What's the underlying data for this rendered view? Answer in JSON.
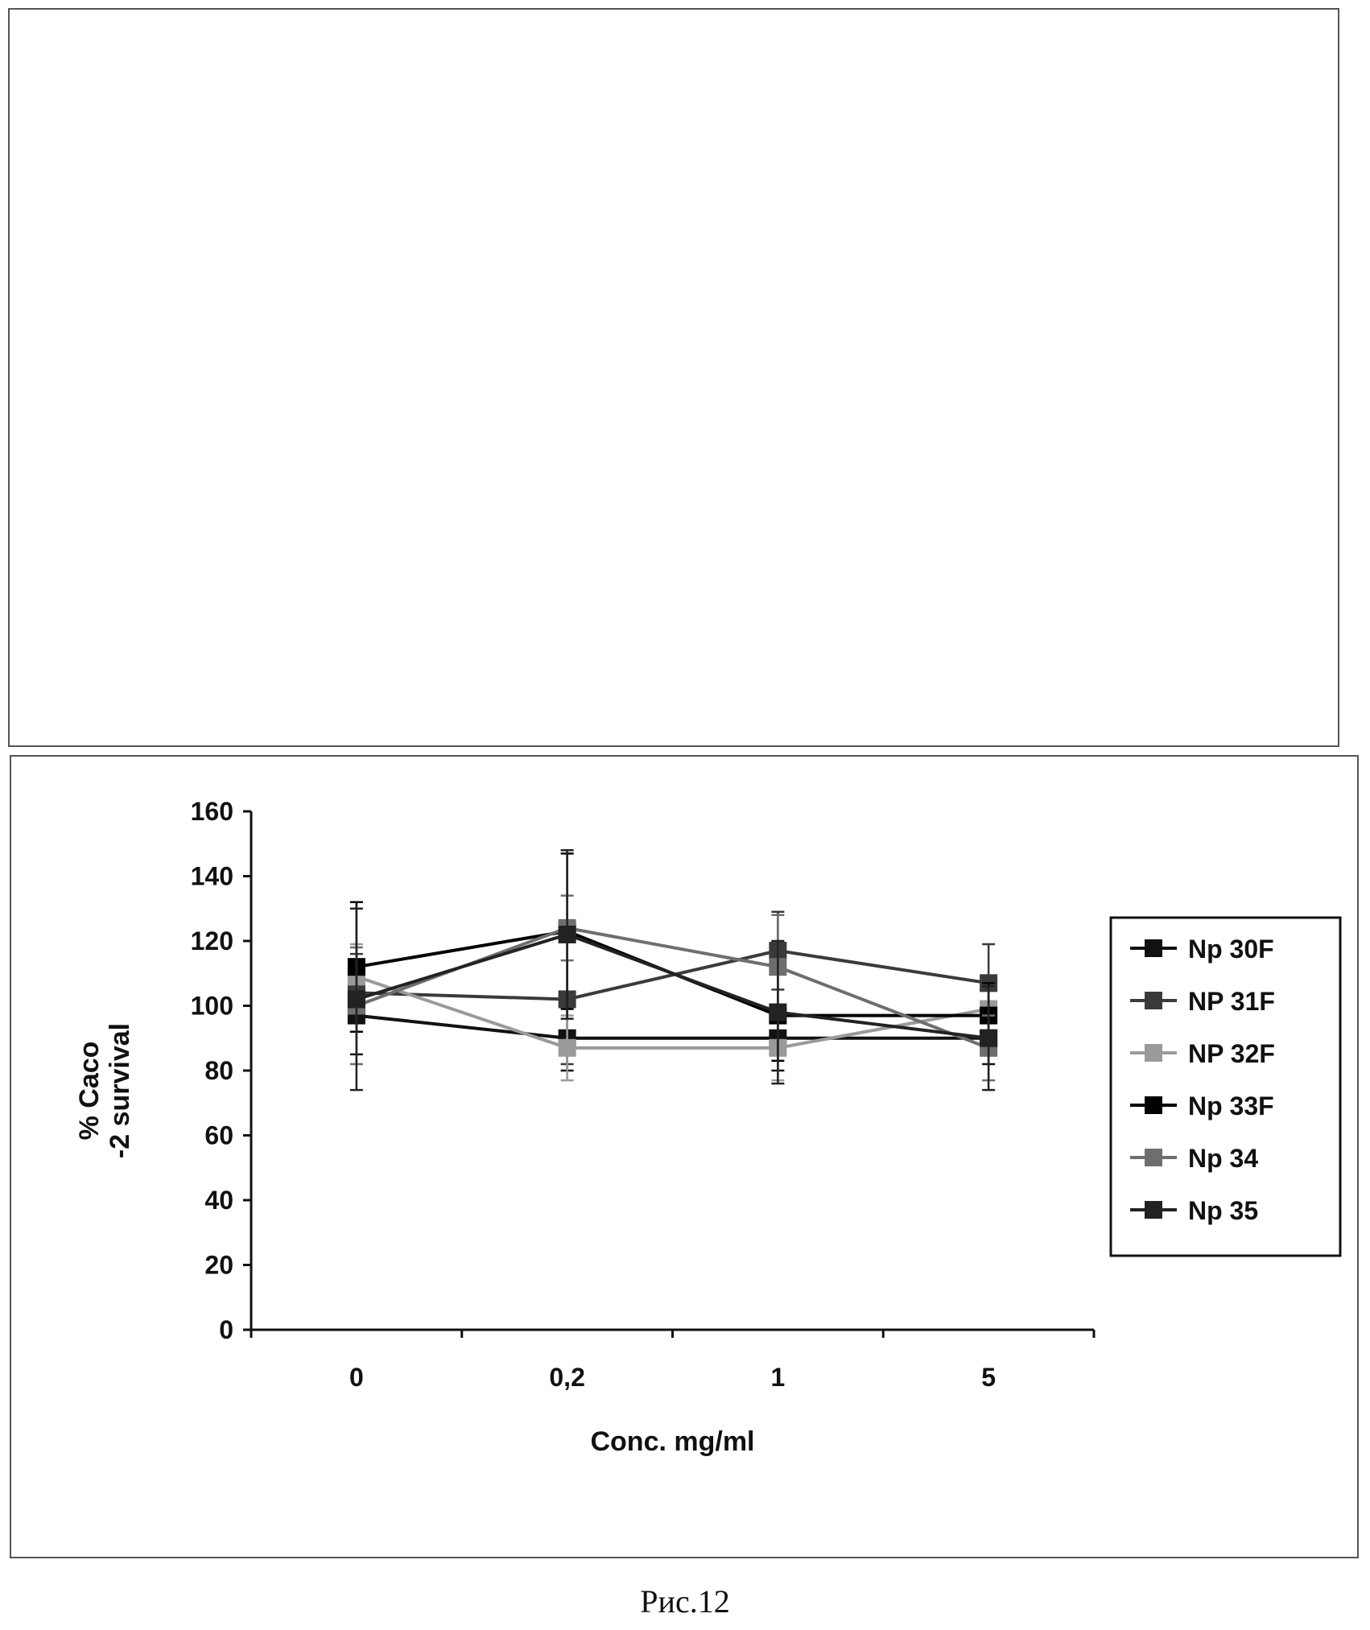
{
  "caption": "Рис.12",
  "chart_data": {
    "type": "line",
    "title": "",
    "xlabel": "Conc. mg/ml",
    "ylabel_lines": [
      "% Caco",
      "-2 survival"
    ],
    "categories": [
      "0",
      "0,2",
      "1",
      "5"
    ],
    "ylim": [
      0,
      160
    ],
    "yticks": [
      0,
      20,
      40,
      60,
      80,
      100,
      120,
      140,
      160
    ],
    "grid": false,
    "legend_position": "right",
    "error_bars": true,
    "series": [
      {
        "name": "Np 30F",
        "values": [
          97,
          90,
          90,
          90
        ],
        "error": [
          12,
          10,
          10,
          8
        ],
        "color": "#111111",
        "marker": "square"
      },
      {
        "name": "NP 31F",
        "values": [
          104,
          102,
          117,
          107
        ],
        "error": [
          12,
          20,
          12,
          12
        ],
        "color": "#3a3a3a",
        "marker": "square"
      },
      {
        "name": "NP 32F",
        "values": [
          109,
          87,
          87,
          99
        ],
        "error": [
          10,
          10,
          10,
          8
        ],
        "color": "#9a9a9a",
        "marker": "square"
      },
      {
        "name": "Np 33F",
        "values": [
          112,
          123,
          97,
          97
        ],
        "error": [
          20,
          24,
          14,
          10
        ],
        "color": "#000000",
        "marker": "square"
      },
      {
        "name": "Np 34",
        "values": [
          100,
          124,
          112,
          87
        ],
        "error": [
          18,
          10,
          16,
          10
        ],
        "color": "#6e6e6e",
        "marker": "square"
      },
      {
        "name": "Np 35",
        "values": [
          102,
          122,
          98,
          90
        ],
        "error": [
          28,
          26,
          22,
          16
        ],
        "color": "#222222",
        "marker": "square"
      }
    ]
  }
}
